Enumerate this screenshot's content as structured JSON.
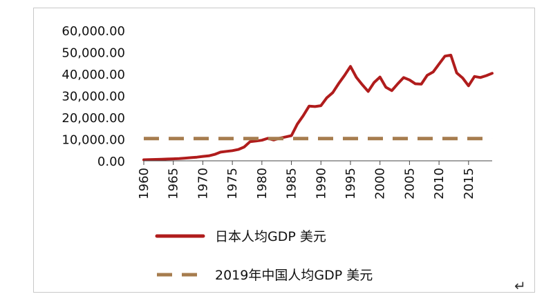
{
  "chart_data": {
    "type": "line",
    "title": "",
    "xlabel": "",
    "ylabel": "",
    "xlim": [
      1960,
      2019
    ],
    "ylim": [
      0,
      60000
    ],
    "y_ticks": [
      0,
      10000,
      20000,
      30000,
      40000,
      50000,
      60000
    ],
    "y_tick_labels": [
      "0.00",
      "10,000.00",
      "20,000.00",
      "30,000.00",
      "40,000.00",
      "50,000.00",
      "60,000.00"
    ],
    "x_ticks": [
      1960,
      1965,
      1970,
      1975,
      1980,
      1985,
      1990,
      1995,
      2000,
      2005,
      2010,
      2015
    ],
    "x_tick_labels": [
      "1960",
      "1965",
      "1970",
      "1975",
      "1980",
      "1985",
      "1990",
      "1995",
      "2000",
      "2005",
      "2010",
      "2015"
    ],
    "grid": false,
    "legend_position": "bottom",
    "series": [
      {
        "name": "日本人均GDP 美元",
        "color": "#b01c1c",
        "style": "solid",
        "x": [
          1960,
          1961,
          1962,
          1963,
          1964,
          1965,
          1966,
          1967,
          1968,
          1969,
          1970,
          1971,
          1972,
          1973,
          1974,
          1975,
          1976,
          1977,
          1978,
          1979,
          1980,
          1981,
          1982,
          1983,
          1984,
          1985,
          1986,
          1987,
          1988,
          1989,
          1990,
          1991,
          1992,
          1993,
          1994,
          1995,
          1996,
          1997,
          1998,
          1999,
          2000,
          2001,
          2002,
          2003,
          2004,
          2005,
          2006,
          2007,
          2008,
          2009,
          2010,
          2011,
          2012,
          2013,
          2014,
          2015,
          2016,
          2017,
          2018,
          2019
        ],
        "values": [
          480,
          560,
          630,
          720,
          840,
          920,
          1060,
          1230,
          1450,
          1670,
          2040,
          2270,
          2960,
          3990,
          4350,
          4680,
          5200,
          6340,
          8820,
          9100,
          9460,
          10360,
          9580,
          10420,
          10980,
          11580,
          16880,
          20740,
          25190,
          24960,
          25380,
          29010,
          31350,
          35520,
          39270,
          43440,
          38400,
          35020,
          31900,
          36030,
          38530,
          33850,
          32290,
          35390,
          38300,
          37220,
          35430,
          35280,
          39340,
          40860,
          44510,
          48170,
          48600,
          40460,
          38110,
          34520,
          38790,
          38330,
          39160,
          40250
        ]
      },
      {
        "name": "2019年中国人均GDP 美元",
        "color": "#a67c4e",
        "style": "dashed",
        "x": [
          1960,
          2019
        ],
        "values": [
          10260,
          10260
        ]
      }
    ]
  }
}
